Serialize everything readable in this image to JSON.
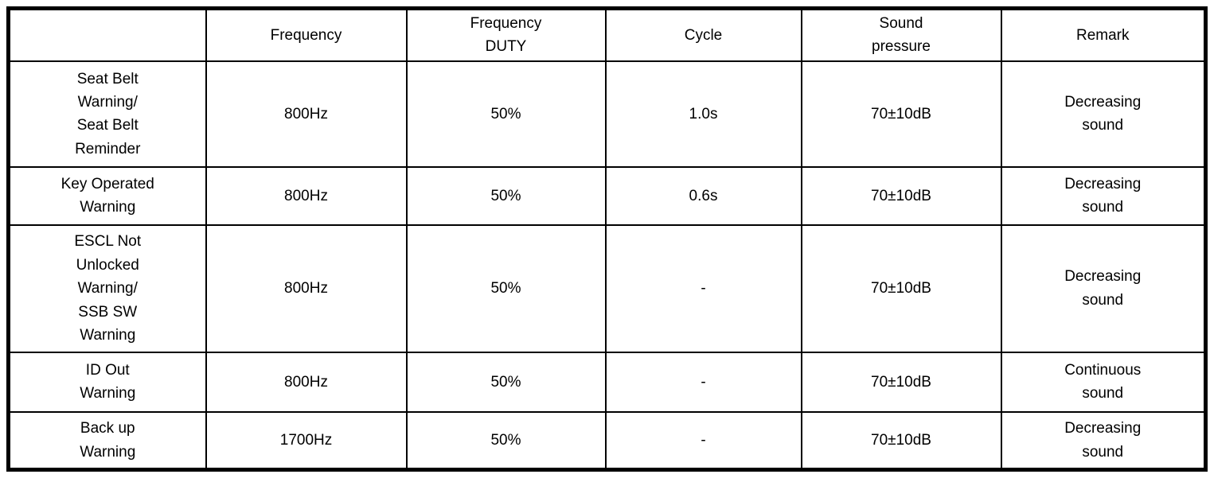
{
  "table": {
    "title_semantic": "warning-buzzer-specification-table",
    "columns": {
      "name": "",
      "frequency": "Frequency",
      "frequency_duty": "Frequency\nDUTY",
      "cycle": "Cycle",
      "sound_pressure": "Sound\npressure",
      "remark": "Remark"
    },
    "rows": [
      {
        "name": "Seat Belt\nWarning/\nSeat Belt\nReminder",
        "frequency": "800Hz",
        "frequency_duty": "50%",
        "cycle": "1.0s",
        "sound_pressure": "70±10dB",
        "remark": "Decreasing\nsound"
      },
      {
        "name": "Key Operated\nWarning",
        "frequency": "800Hz",
        "frequency_duty": "50%",
        "cycle": "0.6s",
        "sound_pressure": "70±10dB",
        "remark": "Decreasing\nsound"
      },
      {
        "name": "ESCL Not\nUnlocked\nWarning/\nSSB SW\nWarning",
        "frequency": "800Hz",
        "frequency_duty": "50%",
        "cycle": "-",
        "sound_pressure": "70±10dB",
        "remark": "Decreasing\nsound"
      },
      {
        "name": "ID Out\nWarning",
        "frequency": "800Hz",
        "frequency_duty": "50%",
        "cycle": "-",
        "sound_pressure": "70±10dB",
        "remark": "Continuous\nsound"
      },
      {
        "name": "Back up\nWarning",
        "frequency": "1700Hz",
        "frequency_duty": "50%",
        "cycle": "-",
        "sound_pressure": "70±10dB",
        "remark": "Decreasing\nsound"
      }
    ],
    "colors": {
      "border": "#000000",
      "text": "#000000",
      "background": "#ffffff"
    }
  }
}
